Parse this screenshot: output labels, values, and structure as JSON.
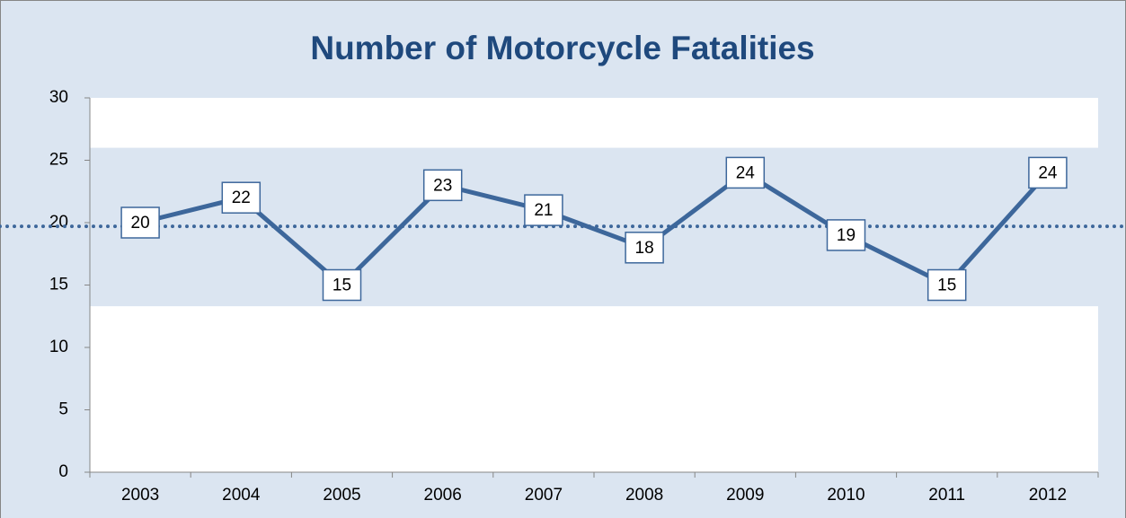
{
  "chart_data": {
    "type": "line",
    "title": "Number of Motorcycle Fatalities",
    "categories": [
      "2003",
      "2004",
      "2005",
      "2006",
      "2007",
      "2008",
      "2009",
      "2010",
      "2011",
      "2012"
    ],
    "series": [
      {
        "name": "Fatalities",
        "color": "#3d679b",
        "values": [
          20,
          22,
          15,
          23,
          21,
          18,
          24,
          19,
          15,
          24
        ]
      }
    ],
    "ylim": [
      0,
      30
    ],
    "yticks": [
      0,
      5,
      10,
      15,
      20,
      25,
      30
    ],
    "reference_line": 19.7,
    "reference_color": "#3d679b",
    "band": [
      13.3,
      26
    ],
    "band_color": "#dbe5f1"
  }
}
